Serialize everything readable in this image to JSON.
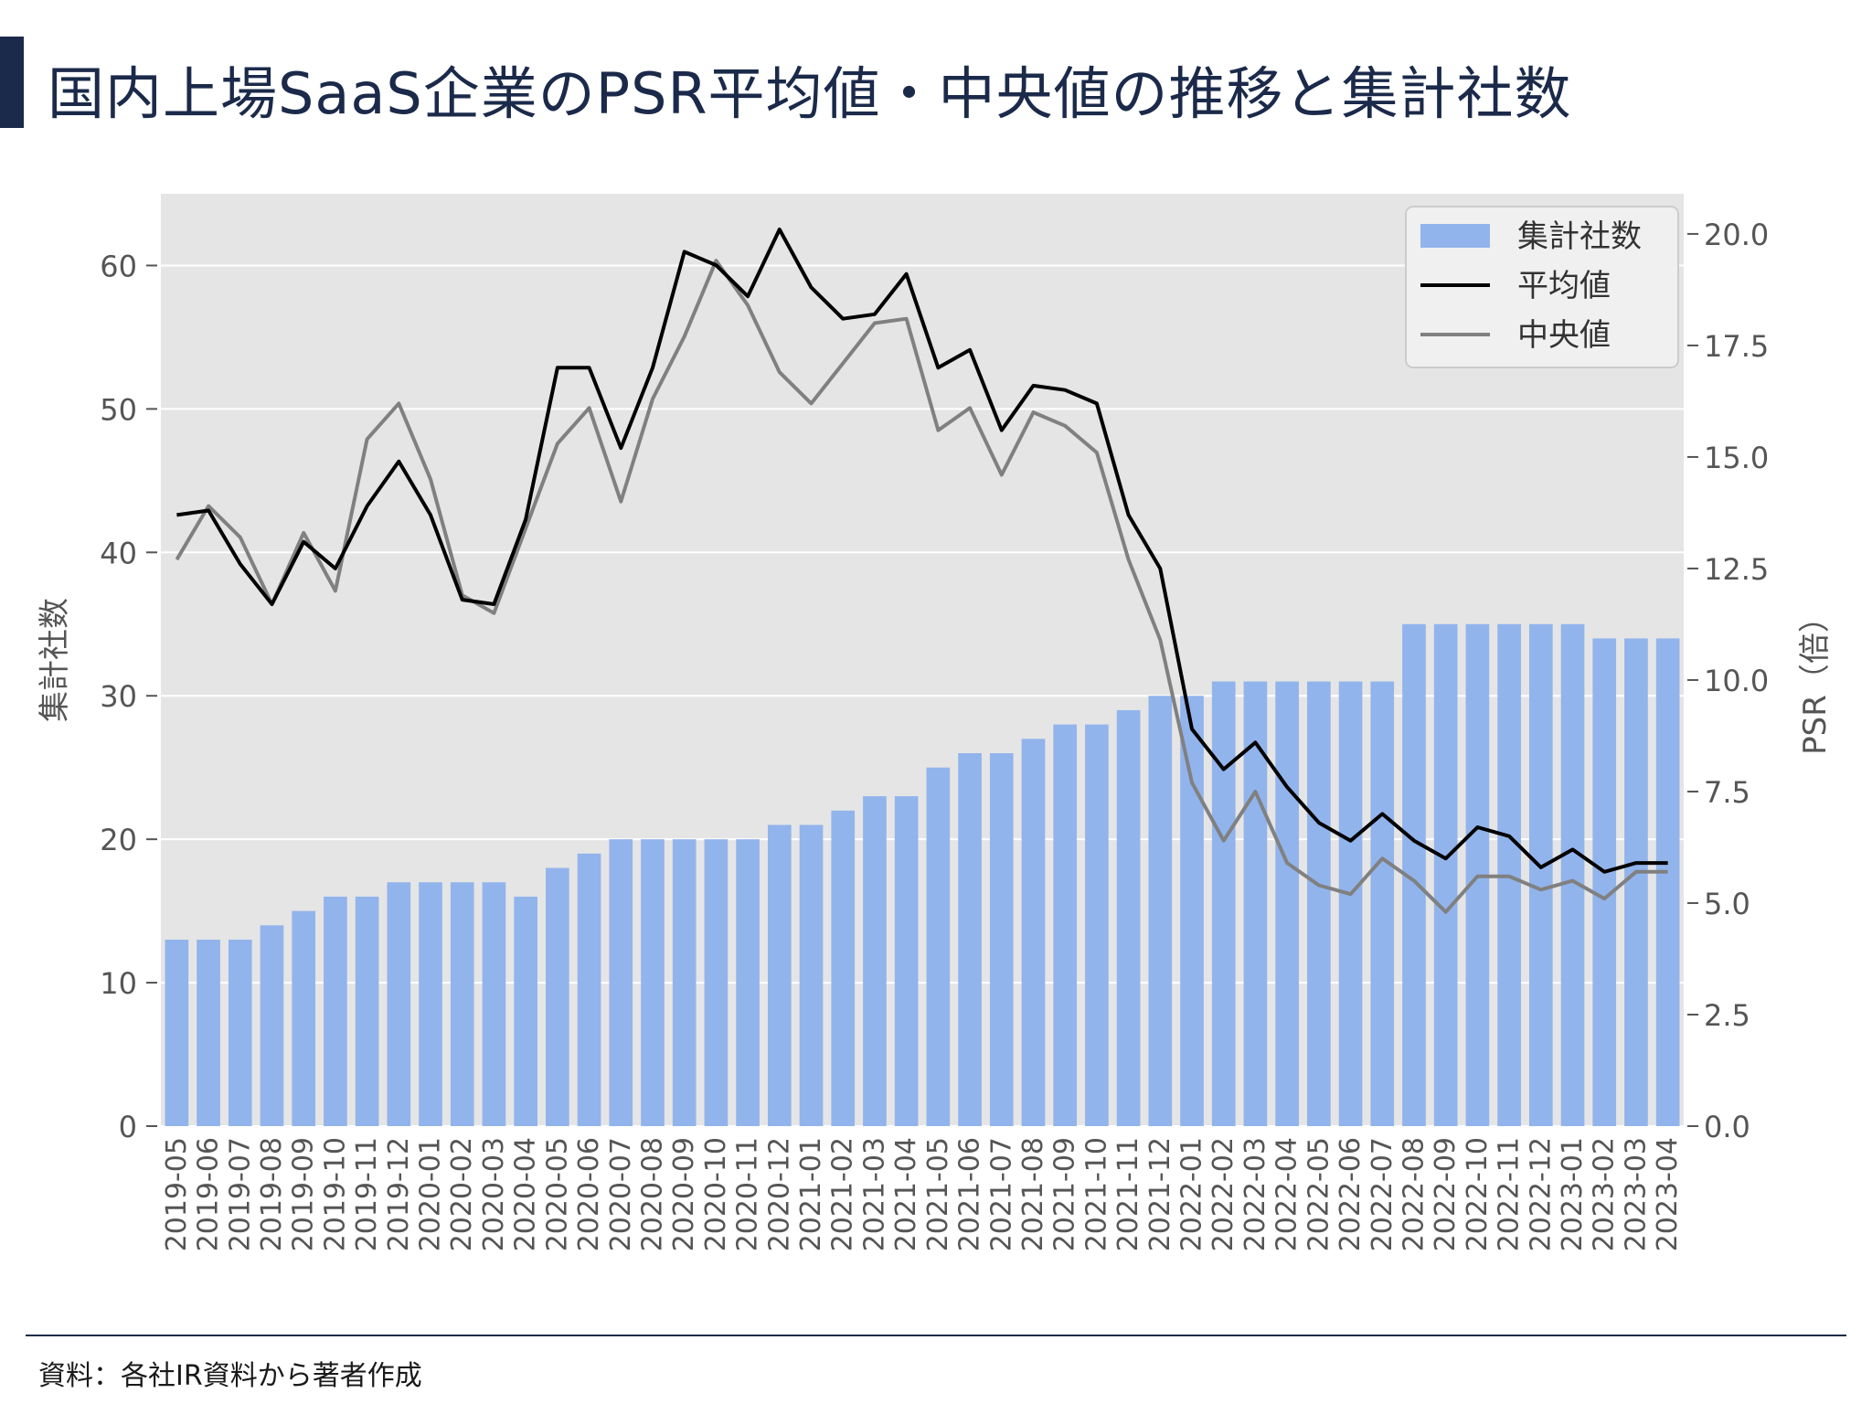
{
  "title": "国内上場SaaS企業のPSR平均値・中央値の推移と集計社数",
  "source": "資料：各社IR資料から著者作成",
  "colors": {
    "accent": "#1b2a4a",
    "bar": "#92b4ec",
    "mean_line": "#000000",
    "median_line": "#808080",
    "plot_bg": "#e5e5e5",
    "grid": "#ffffff"
  },
  "chart_data": {
    "type": "bar",
    "categories": [
      "2019-05",
      "2019-06",
      "2019-07",
      "2019-08",
      "2019-09",
      "2019-10",
      "2019-11",
      "2019-12",
      "2020-01",
      "2020-02",
      "2020-03",
      "2020-04",
      "2020-05",
      "2020-06",
      "2020-07",
      "2020-08",
      "2020-09",
      "2020-10",
      "2020-11",
      "2020-12",
      "2021-01",
      "2021-02",
      "2021-03",
      "2021-04",
      "2021-05",
      "2021-06",
      "2021-07",
      "2021-08",
      "2021-09",
      "2021-10",
      "2021-11",
      "2021-12",
      "2022-01",
      "2022-02",
      "2022-03",
      "2022-04",
      "2022-05",
      "2022-06",
      "2022-07",
      "2022-08",
      "2022-09",
      "2022-10",
      "2022-11",
      "2022-12",
      "2023-01",
      "2023-02",
      "2023-03",
      "2023-04"
    ],
    "series": [
      {
        "name": "集計社数",
        "type": "bar",
        "axis": "left",
        "values": [
          13,
          13,
          13,
          14,
          15,
          16,
          16,
          17,
          17,
          17,
          17,
          16,
          18,
          19,
          20,
          20,
          20,
          20,
          20,
          21,
          21,
          22,
          23,
          23,
          25,
          26,
          26,
          27,
          28,
          28,
          29,
          30,
          30,
          31,
          31,
          31,
          31,
          31,
          31,
          35,
          35,
          35,
          35,
          35,
          35,
          34,
          34,
          34
        ]
      },
      {
        "name": "平均値",
        "type": "line",
        "axis": "right",
        "values": [
          13.7,
          13.8,
          12.6,
          11.7,
          13.1,
          12.5,
          13.9,
          14.9,
          13.7,
          11.8,
          11.7,
          13.6,
          17.0,
          17.0,
          15.2,
          17.0,
          19.6,
          19.3,
          18.6,
          20.1,
          18.8,
          18.1,
          18.2,
          19.1,
          17.0,
          17.4,
          15.6,
          16.6,
          16.5,
          16.2,
          13.7,
          12.5,
          8.9,
          8.0,
          8.6,
          7.6,
          6.8,
          6.4,
          7.0,
          6.4,
          6.0,
          6.7,
          6.5,
          5.8,
          6.2,
          5.7,
          5.9,
          5.9
        ]
      },
      {
        "name": "中央値",
        "type": "line",
        "axis": "right",
        "values": [
          12.7,
          13.9,
          13.2,
          11.7,
          13.3,
          12.0,
          15.4,
          16.2,
          14.5,
          11.9,
          11.5,
          13.4,
          15.3,
          16.1,
          14.0,
          16.3,
          17.7,
          19.4,
          18.4,
          16.9,
          16.2,
          17.1,
          18.0,
          18.1,
          15.6,
          16.1,
          14.6,
          16.0,
          15.7,
          15.1,
          12.7,
          10.9,
          7.7,
          6.4,
          7.5,
          5.9,
          5.4,
          5.2,
          6.0,
          5.5,
          4.8,
          5.6,
          5.6,
          5.3,
          5.5,
          5.1,
          5.7,
          5.7
        ]
      }
    ],
    "y_left": {
      "label": "集計社数",
      "lim": [
        0,
        65
      ],
      "ticks": [
        0,
        10,
        20,
        30,
        40,
        50,
        60
      ],
      "tick_labels": [
        "0",
        "10",
        "20",
        "30",
        "40",
        "50",
        "60"
      ]
    },
    "y_right": {
      "label": "PSR（倍）",
      "lim": [
        0,
        20.9
      ],
      "ticks": [
        0,
        2.5,
        5,
        7.5,
        10,
        12.5,
        15,
        17.5,
        20
      ],
      "tick_labels": [
        "0.0",
        "2.5",
        "5.0",
        "7.5",
        "10.0",
        "12.5",
        "15.0",
        "17.5",
        "20.0"
      ]
    },
    "legend": {
      "position": "top-right",
      "entries": [
        "集計社数",
        "平均値",
        "中央値"
      ]
    },
    "grid": true
  }
}
